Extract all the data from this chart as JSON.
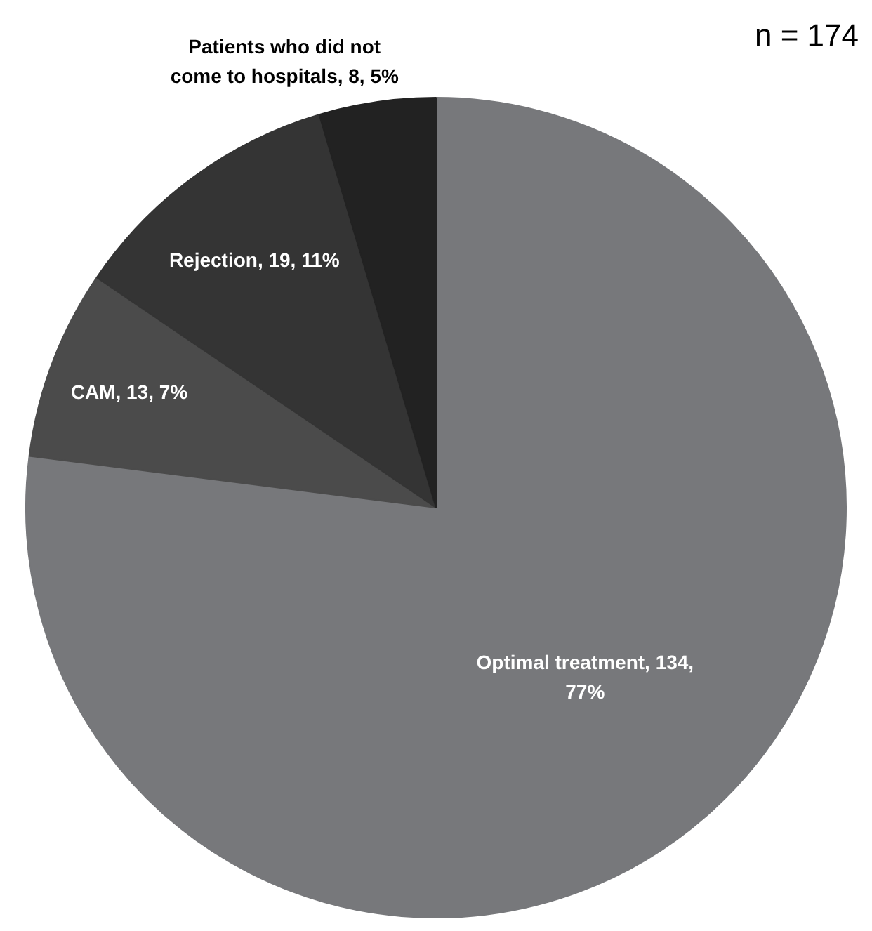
{
  "chart_data": {
    "type": "pie",
    "categories": [
      "Optimal treatment",
      "CAM",
      "Rejection",
      "Patients who did not come to hospitals"
    ],
    "values": [
      134,
      13,
      19,
      8
    ],
    "value_labels": [
      "134, 77%",
      "13, 7%",
      "19, 11%",
      "8, 5%"
    ],
    "colors": [
      "#77787b",
      "#4b4b4b",
      "#343434",
      "#222222"
    ],
    "annotations": [
      "n = 174"
    ]
  }
}
